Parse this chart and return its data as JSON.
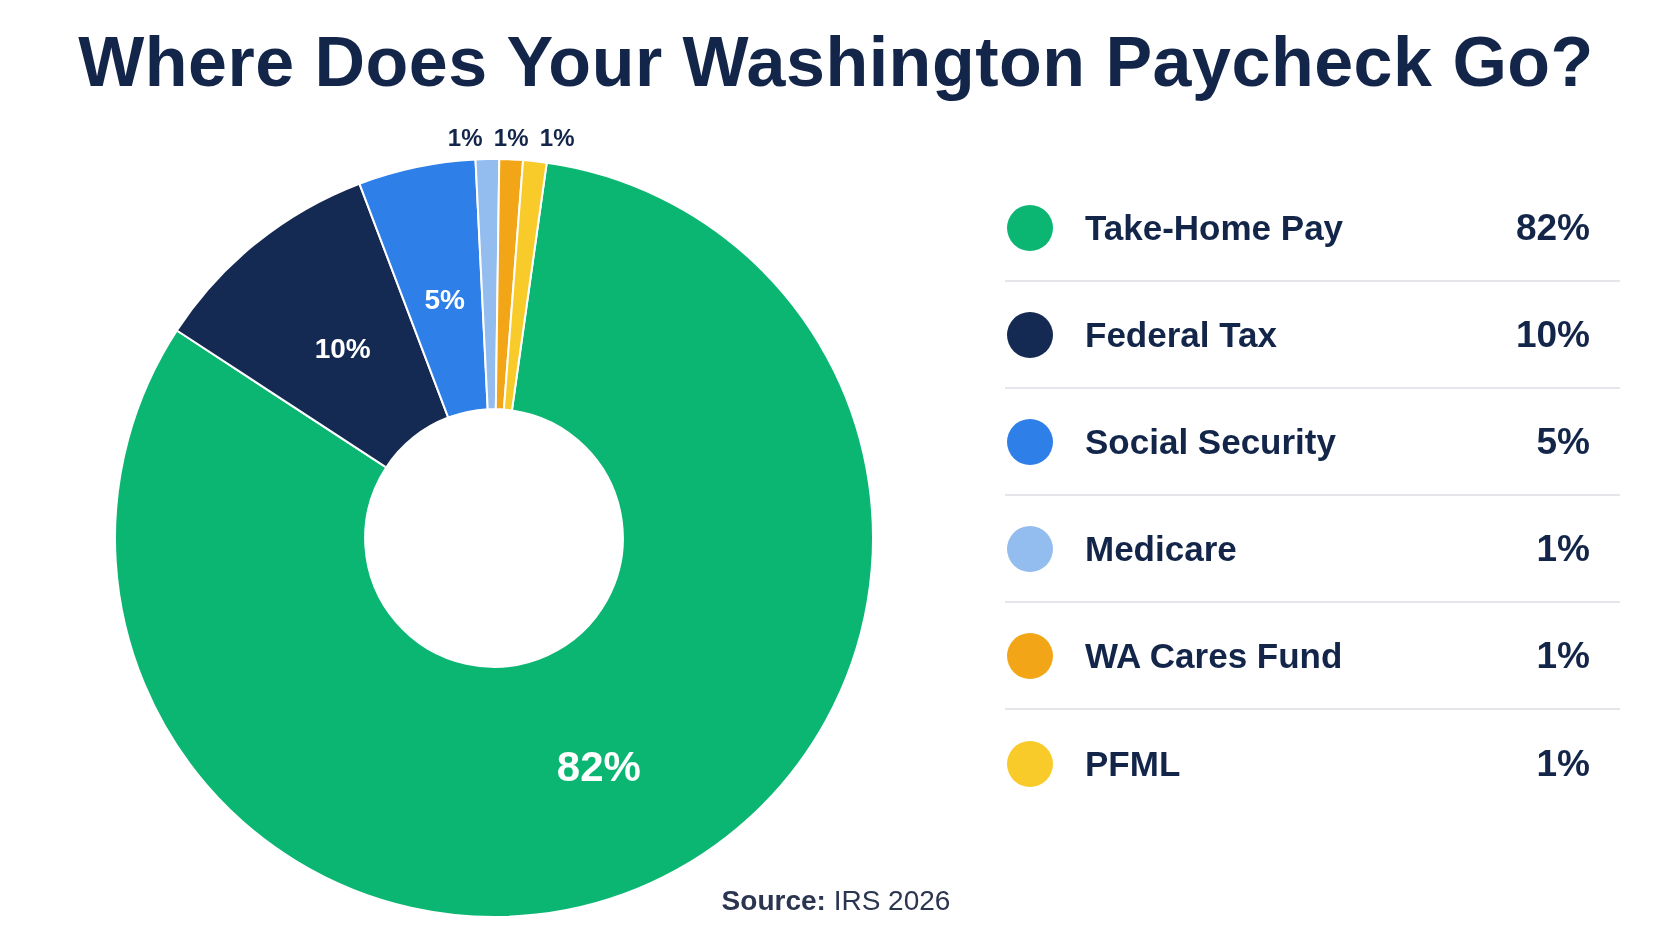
{
  "chart_data": {
    "type": "donut",
    "title": "Where Does Your Washington Paycheck Go?",
    "categories": [
      "Take-Home Pay",
      "Federal Tax",
      "Social Security",
      "Medicare",
      "WA Cares Fund",
      "PFML"
    ],
    "values": [
      82,
      10,
      5,
      1,
      1,
      1
    ],
    "value_labels": [
      "82%",
      "10%",
      "5%",
      "1%",
      "1%",
      "1%"
    ],
    "colors": [
      "#0bb673",
      "#152a52",
      "#2f7fe8",
      "#93bcef",
      "#f2a516",
      "#f8cb2a"
    ],
    "legend": "right",
    "annotations": [
      "Source: IRS 2026"
    ]
  }
}
